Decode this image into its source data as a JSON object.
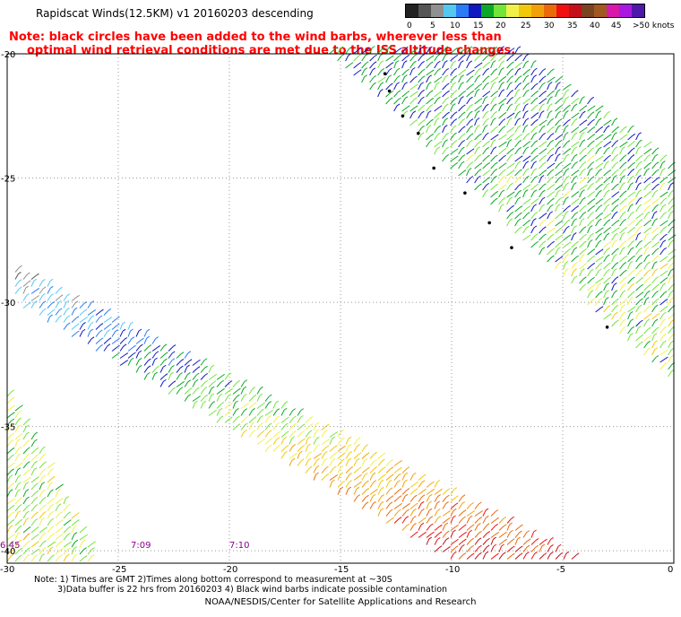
{
  "title": "Rapidscat Winds(12.5KM) v1 20160203 descending",
  "note_lines": [
    "Note: black circles have been added to the wind barbs, wherever less than",
    "optimal wind retrieval conditions are met due to the ISS altitude changes."
  ],
  "footer_lines": [
    "Note: 1) Times are GMT 2)Times along bottom correspond to measurement at ~30S",
    "3)Data buffer is 22 hrs from 20160203 4) Black wind barbs indicate possible contamination"
  ],
  "credit": "NOAA/NESDIS/Center for Satellite Applications and Research",
  "legend": {
    "labels": [
      "0",
      "5",
      "10",
      "15",
      "20",
      "25",
      "30",
      "35",
      "40",
      "45",
      ">50 knots"
    ],
    "colors": [
      "#222222",
      "#555555",
      "#909090",
      "#55c8f0",
      "#2a7bf5",
      "#1018c0",
      "#0aa826",
      "#72e43a",
      "#f0f04a",
      "#f2c80a",
      "#f2a00a",
      "#ea6a0a",
      "#f01010",
      "#c4101a",
      "#7a4420",
      "#a05820",
      "#d818a8",
      "#a818e0",
      "#5018a8"
    ]
  },
  "time_labels": [
    {
      "text": "6:45",
      "color": "#8b008b"
    },
    {
      "text": "7:09",
      "color": "#8b008b"
    },
    {
      "text": "7:10",
      "color": "#8b008b"
    }
  ],
  "chart_data": {
    "type": "wind-barb map",
    "x_ticks": [
      "-30",
      "-25",
      "-20",
      "-15",
      "-10",
      "-5",
      "0"
    ],
    "y_ticks": [
      "-20",
      "-25",
      "-30",
      "-35",
      "-40"
    ],
    "xlim": [
      -30,
      0
    ],
    "ylim": [
      -40.5,
      -20
    ],
    "swaths": [
      {
        "edges": [
          [
            -30,
            -28.5
          ],
          [
            -29.5,
            -30.2
          ],
          [
            -10,
            -40.5
          ],
          [
            -4,
            -40.5
          ]
        ],
        "speed_knots": [
          5,
          35
        ]
      },
      {
        "edges": [
          [
            -15.5,
            -20
          ],
          [
            -7,
            -20
          ],
          [
            0,
            -24.5
          ],
          [
            0,
            -33.5
          ]
        ],
        "speed_knots": [
          10,
          25
        ]
      },
      {
        "edges": [
          [
            -30,
            -33.5
          ],
          [
            -30,
            -40.5
          ],
          [
            -26,
            -40.5
          ]
        ],
        "speed_knots": [
          15,
          25
        ]
      }
    ],
    "marked_points": [
      [
        -13,
        -20.8
      ],
      [
        -12.8,
        -21.5
      ],
      [
        -12.2,
        -22.5
      ],
      [
        -11.5,
        -23.2
      ],
      [
        -10.8,
        -24.6
      ],
      [
        -9.4,
        -25.6
      ],
      [
        -8.3,
        -26.8
      ],
      [
        -7.3,
        -27.8
      ],
      [
        -3,
        -31
      ]
    ]
  }
}
